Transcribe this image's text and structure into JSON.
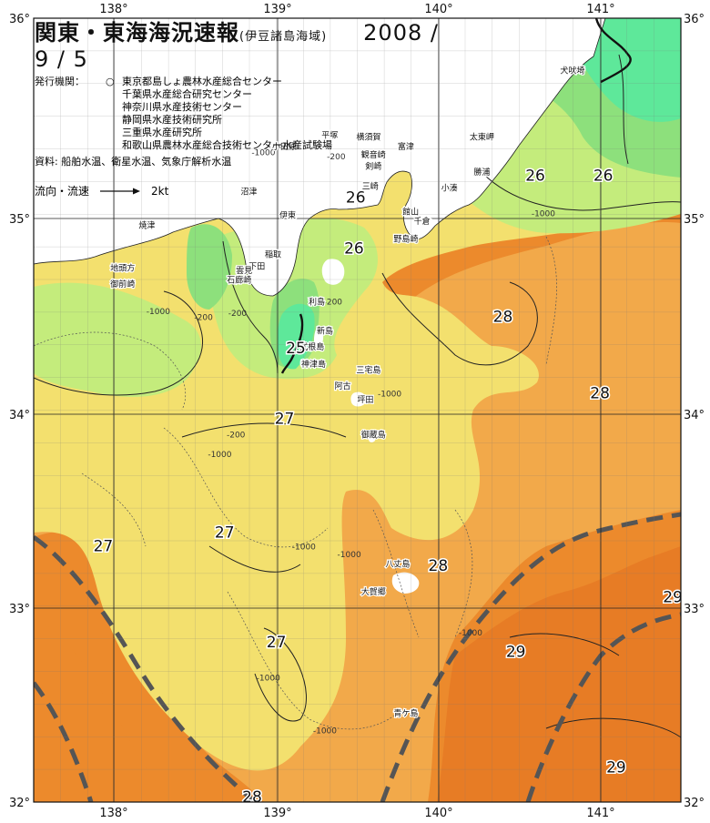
{
  "title": "関東・東海海況速報",
  "subtitle": "(伊豆諸島海域)",
  "date": "2008 / 9 / 5",
  "issuers_label": "発行機関：",
  "issuers_marker": "○",
  "issuers": [
    "東京都島しょ農林水産総合センター",
    "千葉県水産総合研究センター",
    "神奈川県水産技術センター",
    "静岡県水産技術研究所",
    "三重県水産研究所",
    "和歌山県農林水産総合技術センター水産試験場"
  ],
  "sources": "資料: 船舶水温、衛星水温、気象庁解析水温",
  "flow_legend": {
    "label": "流向・流速",
    "value": "2kt"
  },
  "longitude_ticks": [
    "138°",
    "139°",
    "140°",
    "141°"
  ],
  "latitude_ticks": [
    "36°",
    "35°",
    "34°",
    "33°",
    "32°"
  ],
  "colors": {
    "t24": "#5ee89a",
    "t25": "#8de07c",
    "t26": "#c4ec7c",
    "t27": "#f3e06e",
    "t28": "#f2a94a",
    "t29": "#ec8a2c",
    "t30": "#e77c25",
    "land": "#ffffff",
    "kuroshio_axis": "#555555"
  },
  "temperature_labels": [
    {
      "text": "26",
      "lon": 139.49,
      "lat": 35.06
    },
    {
      "text": "26",
      "lon": 140.6,
      "lat": 35.17
    },
    {
      "text": "26",
      "lon": 141.02,
      "lat": 35.17
    },
    {
      "text": "26",
      "lon": 139.48,
      "lat": 34.8
    },
    {
      "text": "25",
      "lon": 139.12,
      "lat": 34.29
    },
    {
      "text": "28",
      "lon": 140.4,
      "lat": 34.45
    },
    {
      "text": "28",
      "lon": 141.0,
      "lat": 34.06
    },
    {
      "text": "27",
      "lon": 139.05,
      "lat": 33.93
    },
    {
      "text": "27",
      "lon": 138.68,
      "lat": 33.35
    },
    {
      "text": "27",
      "lon": 137.93,
      "lat": 33.28
    },
    {
      "text": "27",
      "lon": 139.0,
      "lat": 32.79
    },
    {
      "text": "28",
      "lon": 140.0,
      "lat": 33.18
    },
    {
      "text": "29",
      "lon": 140.48,
      "lat": 32.74
    },
    {
      "text": "29",
      "lon": 141.45,
      "lat": 33.02
    },
    {
      "text": "29",
      "lon": 141.1,
      "lat": 32.15
    },
    {
      "text": "28",
      "lon": 138.85,
      "lat": 32.0
    }
  ],
  "place_labels": [
    {
      "text": "犬吠埼",
      "lon": 140.83,
      "lat": 35.72
    },
    {
      "text": "太東岬",
      "lon": 140.27,
      "lat": 35.38
    },
    {
      "text": "勝浦",
      "lon": 140.27,
      "lat": 35.2
    },
    {
      "text": "小湊",
      "lon": 140.07,
      "lat": 35.12
    },
    {
      "text": "館山",
      "lon": 139.83,
      "lat": 35.0
    },
    {
      "text": "千倉",
      "lon": 139.9,
      "lat": 34.95
    },
    {
      "text": "野島崎",
      "lon": 139.8,
      "lat": 34.86
    },
    {
      "text": "富津",
      "lon": 139.8,
      "lat": 35.33
    },
    {
      "text": "横須賀",
      "lon": 139.57,
      "lat": 35.38
    },
    {
      "text": "観音崎",
      "lon": 139.6,
      "lat": 35.29
    },
    {
      "text": "剣崎",
      "lon": 139.6,
      "lat": 35.23
    },
    {
      "text": "三崎",
      "lon": 139.58,
      "lat": 35.13
    },
    {
      "text": "平塚",
      "lon": 139.33,
      "lat": 35.39
    },
    {
      "text": "小田原",
      "lon": 139.05,
      "lat": 35.33
    },
    {
      "text": "伊東",
      "lon": 139.07,
      "lat": 34.98
    },
    {
      "text": "稲取",
      "lon": 138.98,
      "lat": 34.78
    },
    {
      "text": "下田",
      "lon": 138.88,
      "lat": 34.72
    },
    {
      "text": "石廊崎",
      "lon": 138.77,
      "lat": 34.65
    },
    {
      "text": "雲見",
      "lon": 138.8,
      "lat": 34.7
    },
    {
      "text": "沼津",
      "lon": 138.83,
      "lat": 35.1
    },
    {
      "text": "焼津",
      "lon": 138.2,
      "lat": 34.93
    },
    {
      "text": "地頭方",
      "lon": 138.05,
      "lat": 34.71
    },
    {
      "text": "御前崎",
      "lon": 138.05,
      "lat": 34.63
    },
    {
      "text": "利島",
      "lon": 139.25,
      "lat": 34.54
    },
    {
      "text": "新島",
      "lon": 139.3,
      "lat": 34.39
    },
    {
      "text": "式根島",
      "lon": 139.22,
      "lat": 34.31
    },
    {
      "text": "神津島",
      "lon": 139.23,
      "lat": 34.22
    },
    {
      "text": "三宅島",
      "lon": 139.57,
      "lat": 34.19
    },
    {
      "text": "阿古",
      "lon": 139.41,
      "lat": 34.11
    },
    {
      "text": "坪田",
      "lon": 139.55,
      "lat": 34.04
    },
    {
      "text": "御蔵島",
      "lon": 139.6,
      "lat": 33.86
    },
    {
      "text": "八丈島",
      "lon": 139.75,
      "lat": 33.2
    },
    {
      "text": "大賀郷",
      "lon": 139.6,
      "lat": 33.06
    },
    {
      "text": "青ケ島",
      "lon": 139.8,
      "lat": 32.44
    }
  ],
  "depth_labels": [
    {
      "text": "-1000",
      "lon": 138.92,
      "lat": 35.3
    },
    {
      "text": "-200",
      "lon": 139.37,
      "lat": 35.28
    },
    {
      "text": "-1000",
      "lon": 140.65,
      "lat": 34.99
    },
    {
      "text": "-1000",
      "lon": 138.27,
      "lat": 34.49
    },
    {
      "text": "-200",
      "lon": 138.55,
      "lat": 34.46
    },
    {
      "text": "-200",
      "lon": 138.76,
      "lat": 34.48
    },
    {
      "text": "-200",
      "lon": 139.35,
      "lat": 34.54
    },
    {
      "text": "-1000",
      "lon": 139.7,
      "lat": 34.07
    },
    {
      "text": "-200",
      "lon": 138.75,
      "lat": 33.86
    },
    {
      "text": "-1000",
      "lon": 138.65,
      "lat": 33.76
    },
    {
      "text": "-1000",
      "lon": 139.17,
      "lat": 33.29
    },
    {
      "text": "-1000",
      "lon": 139.45,
      "lat": 33.25
    },
    {
      "text": "-1000",
      "lon": 138.95,
      "lat": 32.62
    },
    {
      "text": "-1000",
      "lon": 139.3,
      "lat": 32.35
    },
    {
      "text": "-1000",
      "lon": 140.2,
      "lat": 32.85
    }
  ]
}
